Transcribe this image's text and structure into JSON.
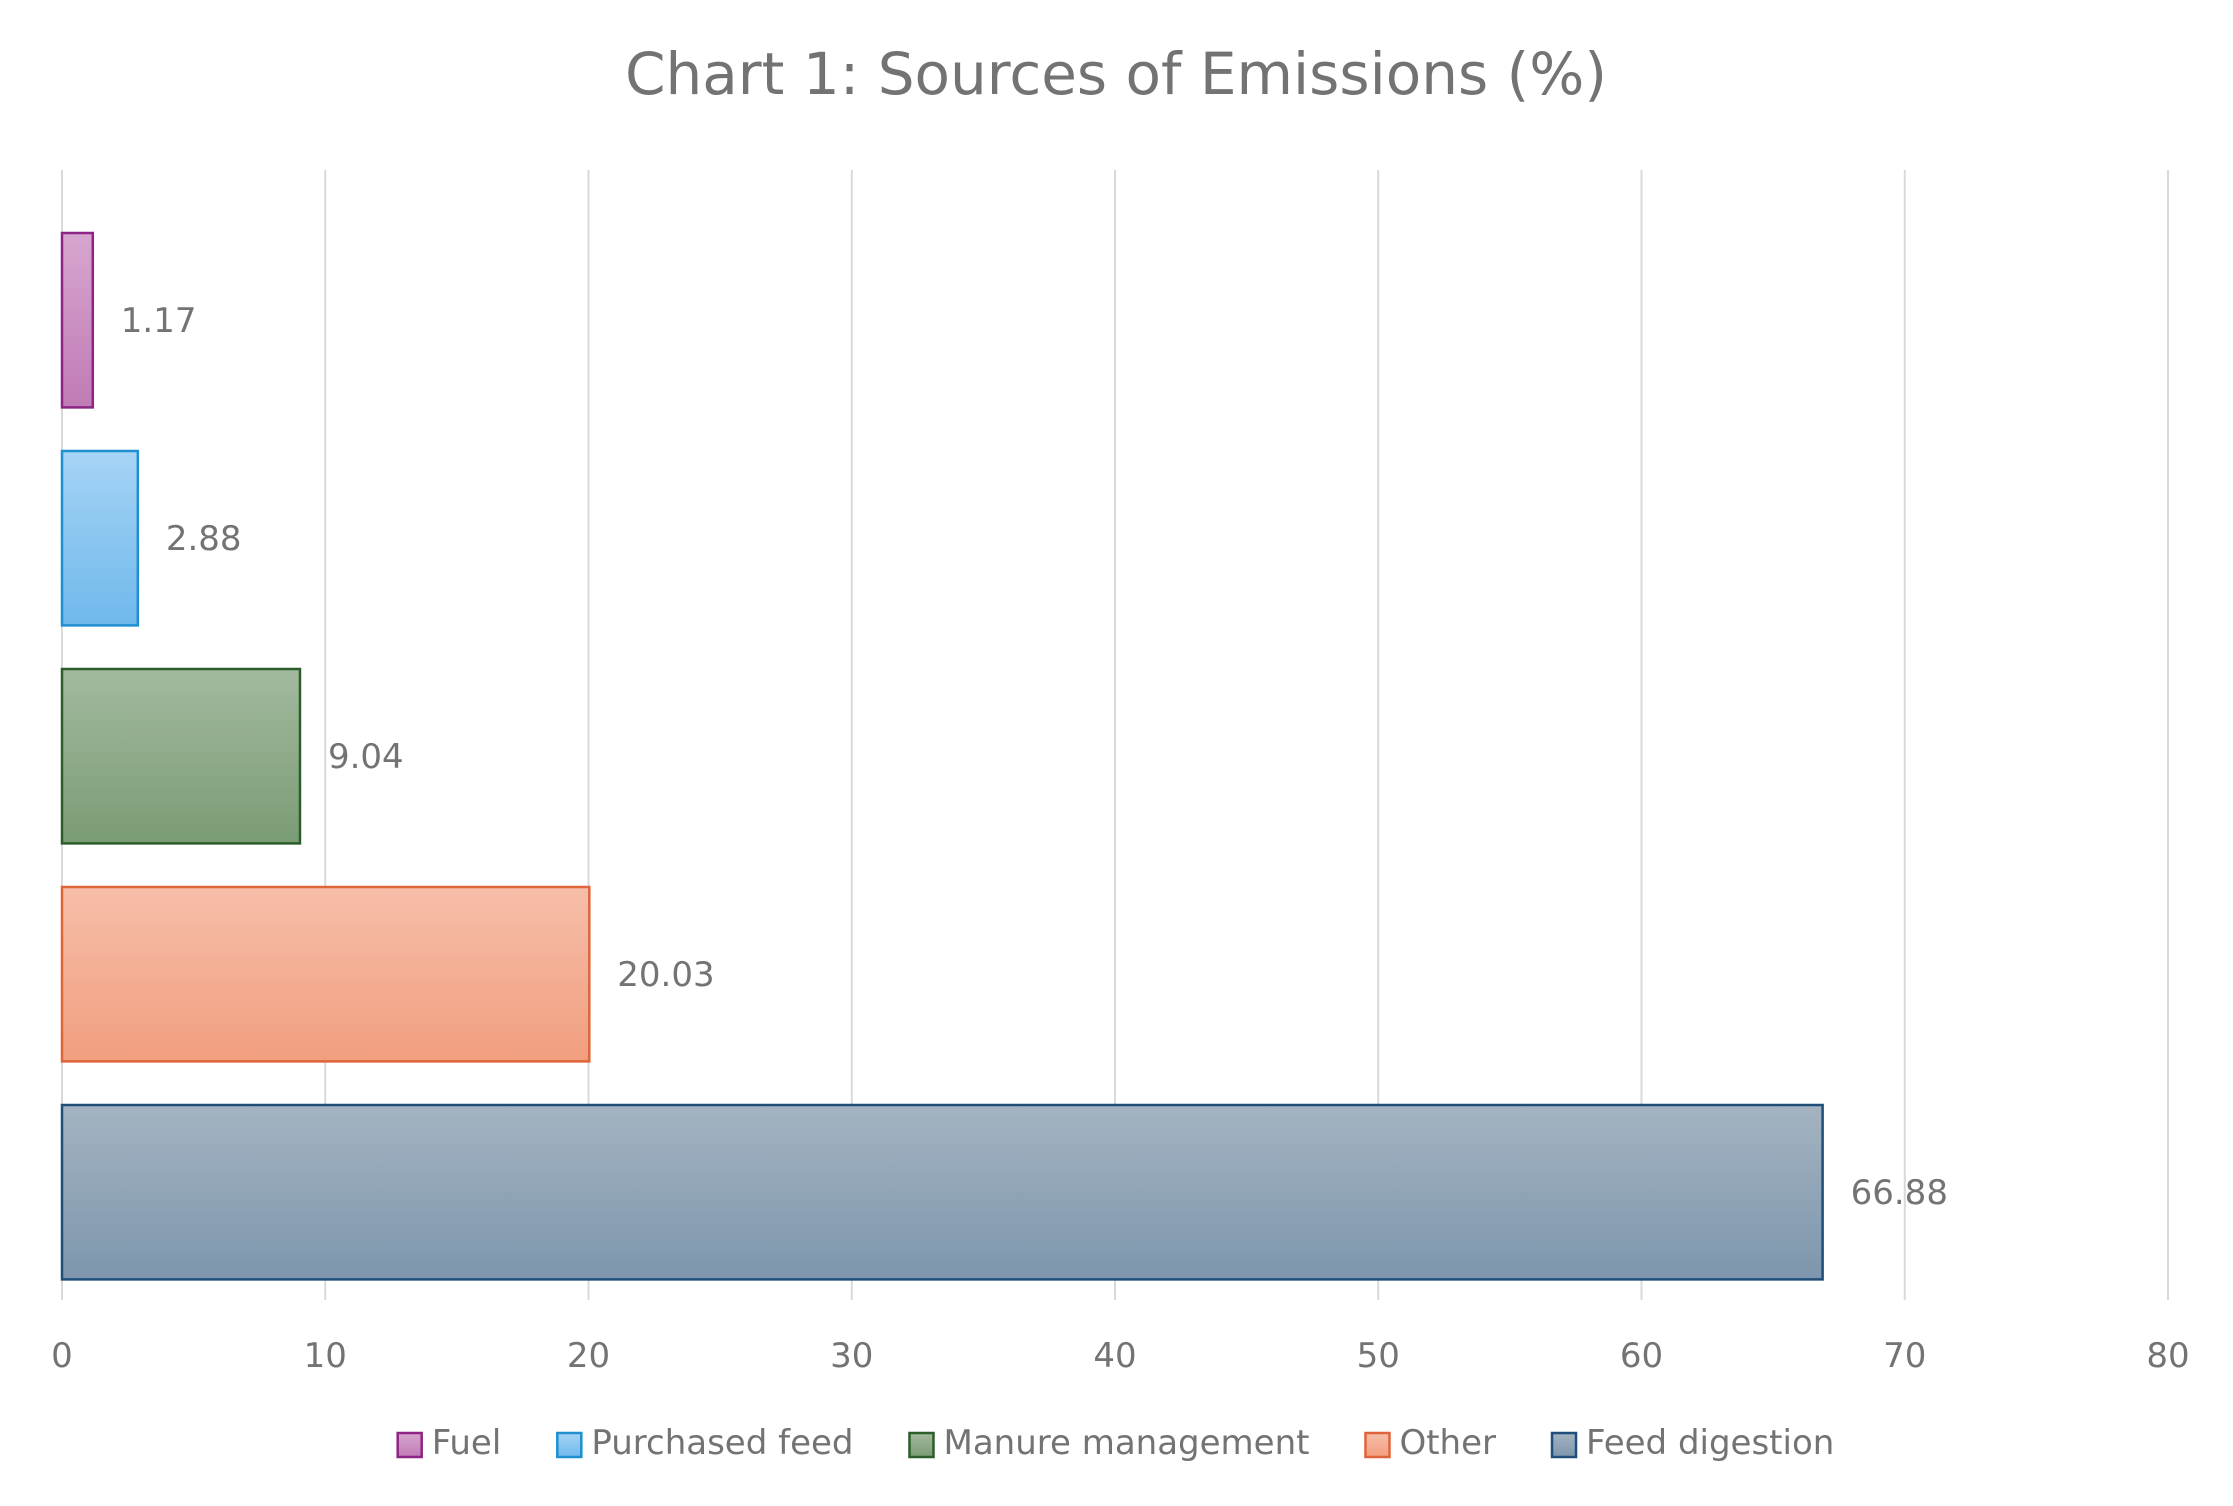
{
  "chart_data": {
    "type": "bar",
    "orientation": "horizontal",
    "title": "Chart 1: Sources of Emissions (%)",
    "xlabel": "",
    "ylabel": "",
    "xlim": [
      0,
      80
    ],
    "x_ticks": [
      "0",
      "10",
      "20",
      "30",
      "40",
      "50",
      "60",
      "70",
      "80"
    ],
    "grid": true,
    "legend_position": "bottom",
    "series": [
      {
        "name": "Fuel",
        "value": 1.17,
        "label": "1.17",
        "fill_top": "#d7a6cf",
        "fill_bottom": "#c07bb5",
        "stroke": "#8e2586"
      },
      {
        "name": "Purchased feed",
        "value": 2.88,
        "label": "2.88",
        "fill_top": "#a6d4f5",
        "fill_bottom": "#6fb8ec",
        "stroke": "#1f8fd0"
      },
      {
        "name": "Manure management",
        "value": 9.04,
        "label": "9.04",
        "fill_top": "#a3b99f",
        "fill_bottom": "#7a9c74",
        "stroke": "#2b5e2a"
      },
      {
        "name": "Other",
        "value": 20.03,
        "label": "20.03",
        "fill_top": "#f6bea9",
        "fill_bottom": "#f19e7e",
        "stroke": "#e0643a"
      },
      {
        "name": "Feed digestion",
        "value": 66.88,
        "label": "66.88",
        "fill_top": "#a4b3c1",
        "fill_bottom": "#7d96ad",
        "stroke": "#1f4e79"
      }
    ]
  }
}
